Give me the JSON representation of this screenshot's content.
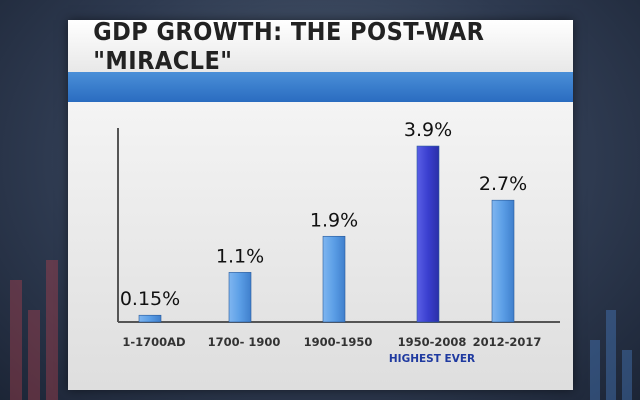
{
  "title": "GDP GROWTH: THE POST-WAR \"MIRACLE\"",
  "colors": {
    "bar_default": "#5b9ee6",
    "bar_highlight": "#3a3fcf",
    "band": "#3a7fd0",
    "axis": "#555555"
  },
  "chart_data": {
    "type": "bar",
    "title": "GDP GROWTH: THE POST-WAR \"MIRACLE\"",
    "xlabel": "",
    "ylabel": "",
    "categories": [
      "1-1700AD",
      "1700- 1900",
      "1900-1950",
      "1950-2008",
      "2012-2017"
    ],
    "values": [
      0.15,
      1.1,
      1.9,
      3.9,
      2.7
    ],
    "data_labels": [
      "0.15%",
      "1.1%",
      "1.9%",
      "3.9%",
      "2.7%"
    ],
    "annotations": [
      {
        "category": "1950-2008",
        "text": "HIGHEST EVER"
      }
    ],
    "highlight_category": "1950-2008",
    "ylim": [
      0,
      4.3
    ],
    "grid": false,
    "legend": "none"
  }
}
